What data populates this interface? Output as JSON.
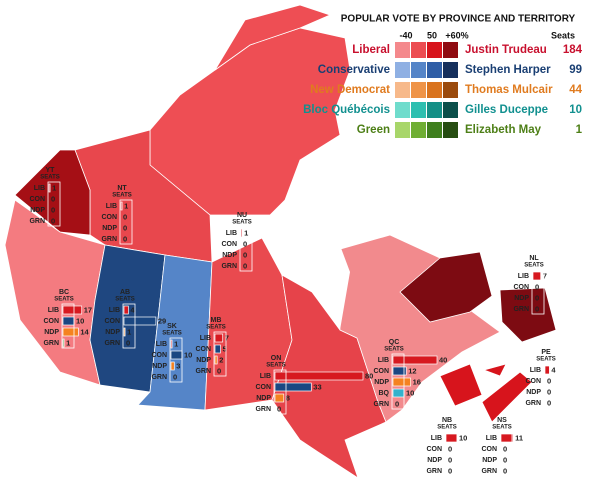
{
  "legend": {
    "title": "POPULAR VOTE BY PROVINCE AND TERRITORY",
    "scale_labels": [
      "-40",
      "50",
      "+60%"
    ],
    "seats_header": "Seats",
    "parties": [
      {
        "name": "Liberal",
        "leader": "Justin Trudeau",
        "seats": 184,
        "color": "#d71920",
        "text_color": "#c8102e",
        "shades": [
          "#f4898c",
          "#ec4d52",
          "#d7141c",
          "#8f0b11"
        ]
      },
      {
        "name": "Conservative",
        "leader": "Stephen Harper",
        "seats": 99,
        "color": "#1a4782",
        "text_color": "#1a3f73",
        "shades": [
          "#8fb0e3",
          "#5585c8",
          "#2f5ea6",
          "#152f5c"
        ]
      },
      {
        "name": "New Democrat",
        "leader": "Thomas Mulcair",
        "seats": 44,
        "color": "#f58220",
        "text_color": "#e07b1f",
        "shades": [
          "#f7b98a",
          "#ef9448",
          "#d9731e",
          "#9a4a0d"
        ]
      },
      {
        "name": "Bloc Québécois",
        "leader": "Gilles Duceppe",
        "seats": 10,
        "color": "#33b2cc",
        "text_color": "#11908f",
        "shades": [
          "#6fdccc",
          "#2dbfb0",
          "#148f86",
          "#0b4f4a"
        ]
      },
      {
        "name": "Green",
        "leader": "Elizabeth May",
        "seats": 1,
        "color": "#3d9b35",
        "text_color": "#4d7f17",
        "shades": [
          "#a8d66a",
          "#6fae34",
          "#3f7f1e",
          "#264d12"
        ]
      }
    ]
  },
  "provinces": [
    {
      "name": "YT",
      "sub": "SEATS",
      "rows": [
        {
          "label": "LIB",
          "seats": 1
        },
        {
          "label": "CON",
          "seats": 0
        },
        {
          "label": "NDP",
          "seats": 0
        },
        {
          "label": "GRN",
          "seats": 0
        }
      ]
    },
    {
      "name": "NT",
      "sub": "SEATS",
      "rows": [
        {
          "label": "LIB",
          "seats": 1
        },
        {
          "label": "CON",
          "seats": 0
        },
        {
          "label": "NDP",
          "seats": 0
        },
        {
          "label": "GRN",
          "seats": 0
        }
      ]
    },
    {
      "name": "NU",
      "sub": "SEATS",
      "rows": [
        {
          "label": "LIB",
          "seats": 1
        },
        {
          "label": "CON",
          "seats": 0
        },
        {
          "label": "NDP",
          "seats": 0
        },
        {
          "label": "GRN",
          "seats": 0
        }
      ]
    },
    {
      "name": "BC",
      "sub": "SEATS",
      "rows": [
        {
          "label": "LIB",
          "seats": 17
        },
        {
          "label": "CON",
          "seats": 10
        },
        {
          "label": "NDP",
          "seats": 14
        },
        {
          "label": "GRN",
          "seats": 1
        }
      ]
    },
    {
      "name": "AB",
      "sub": "SEATS",
      "rows": [
        {
          "label": "LIB",
          "seats": 4
        },
        {
          "label": "CON",
          "seats": 29
        },
        {
          "label": "NDP",
          "seats": 1
        },
        {
          "label": "GRN",
          "seats": 0
        }
      ]
    },
    {
      "name": "SK",
      "sub": "SEATS",
      "rows": [
        {
          "label": "LIB",
          "seats": 1
        },
        {
          "label": "CON",
          "seats": 10
        },
        {
          "label": "NDP",
          "seats": 3
        },
        {
          "label": "GRN",
          "seats": 0
        }
      ]
    },
    {
      "name": "MB",
      "sub": "SEATS",
      "rows": [
        {
          "label": "LIB",
          "seats": 7
        },
        {
          "label": "CON",
          "seats": 5
        },
        {
          "label": "NDP",
          "seats": 2
        },
        {
          "label": "GRN",
          "seats": 0
        }
      ]
    },
    {
      "name": "ON",
      "sub": "SEATS",
      "rows": [
        {
          "label": "LIB",
          "seats": 80
        },
        {
          "label": "CON",
          "seats": 33
        },
        {
          "label": "NDP",
          "seats": 8
        },
        {
          "label": "GRN",
          "seats": 0
        }
      ]
    },
    {
      "name": "QC",
      "sub": "SEATS",
      "rows": [
        {
          "label": "LIB",
          "seats": 40
        },
        {
          "label": "CON",
          "seats": 12
        },
        {
          "label": "NDP",
          "seats": 16
        },
        {
          "label": "BQ",
          "seats": 10
        },
        {
          "label": "GRN",
          "seats": 0
        }
      ]
    },
    {
      "name": "NL",
      "sub": "SEATS",
      "rows": [
        {
          "label": "LIB",
          "seats": 7
        },
        {
          "label": "CON",
          "seats": 0
        },
        {
          "label": "NDP",
          "seats": 0
        },
        {
          "label": "GRN",
          "seats": 0
        }
      ]
    },
    {
      "name": "PE",
      "sub": "SEATS",
      "rows": [
        {
          "label": "LIB",
          "seats": 4
        },
        {
          "label": "CON",
          "seats": 0
        },
        {
          "label": "NDP",
          "seats": 0
        },
        {
          "label": "GRN",
          "seats": 0
        }
      ]
    },
    {
      "name": "NB",
      "sub": "SEATS",
      "rows": [
        {
          "label": "LIB",
          "seats": 10
        },
        {
          "label": "CON",
          "seats": 0
        },
        {
          "label": "NDP",
          "seats": 0
        },
        {
          "label": "GRN",
          "seats": 0
        }
      ]
    },
    {
      "name": "NS",
      "sub": "SEATS",
      "rows": [
        {
          "label": "LIB",
          "seats": 11
        },
        {
          "label": "CON",
          "seats": 0
        },
        {
          "label": "NDP",
          "seats": 0
        },
        {
          "label": "GRN",
          "seats": 0
        }
      ]
    }
  ]
}
